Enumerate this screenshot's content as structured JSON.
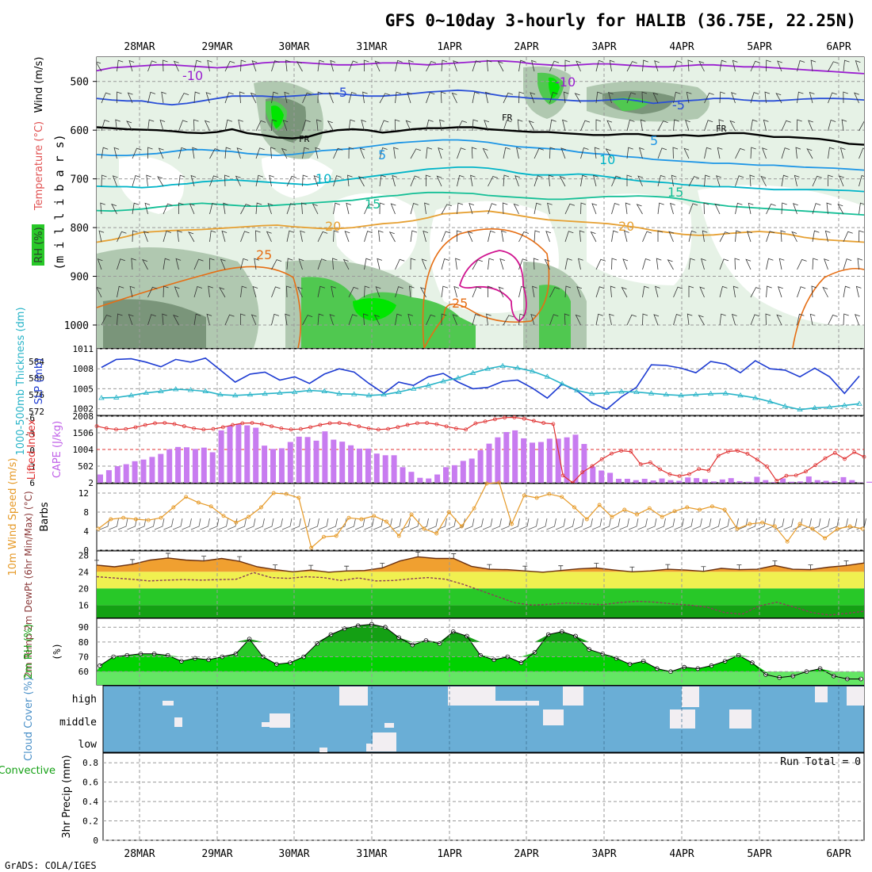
{
  "title": "GFS 0~10day 3-hourly for HALIB (36.75E, 22.25N)",
  "footer": "GrADS: COLA/IGES",
  "colors": {
    "purple": "#9a1ed0",
    "blue": "#2a4fd8",
    "black": "#000000",
    "skyblue": "#1e96e6",
    "cyan": "#00b4c8",
    "teal": "#14bf96",
    "gold": "#e6a032",
    "orange": "#e66e14",
    "magenta": "#d01690",
    "rh_light": "#e6f2e6",
    "rh_mid": "#b0c8b0",
    "rh_dark": "#7a957a",
    "rh_green": "#50c850",
    "rh_bright": "#00e600",
    "cape": "#c87cf0",
    "li": "#e03232",
    "slp": "#1e3cd2",
    "thick": "#28b4c8",
    "wind10": "#e69a28",
    "temp": "#f0a030",
    "dew": "#8c3c5a",
    "yellow": "#f0f050",
    "green1": "#64e664",
    "green2": "#28c828",
    "green3": "#14a014",
    "cloud_bg": "#6aaed6",
    "cloud_hi": "#f2eef2"
  },
  "chart_data": [
    {
      "id": "upper_air",
      "type": "heatmap",
      "ylabel": "(m i l l i b a r s)",
      "side_labels": [
        "RH (%)",
        "Temperature (°C)",
        "Wind (m/s)"
      ],
      "y_ticks": [
        500,
        600,
        700,
        800,
        900,
        1000
      ],
      "ylim": [
        450,
        1000
      ],
      "isotherm_labels": [
        "-10",
        "-5",
        "FR",
        "5",
        "10",
        "15",
        "20",
        "25"
      ],
      "contours": [
        {
          "label": "-10",
          "color": "purple",
          "values": [
            478,
            472,
            470,
            468,
            466,
            466,
            468,
            470,
            472,
            470,
            466,
            462,
            460,
            460,
            462,
            464,
            466,
            466,
            464,
            462,
            462,
            464,
            466,
            464,
            462,
            460,
            458,
            458,
            460,
            464,
            466,
            468,
            466,
            464,
            464,
            466,
            468,
            470,
            470,
            468,
            466,
            466,
            468,
            470,
            470,
            472,
            474,
            476,
            478,
            480,
            482,
            484
          ]
        },
        {
          "label": "-5",
          "color": "blue",
          "values": [
            535,
            538,
            540,
            540,
            545,
            548,
            545,
            540,
            535,
            530,
            530,
            530,
            532,
            530,
            528,
            525,
            525,
            528,
            530,
            530,
            528,
            525,
            522,
            520,
            518,
            520,
            525,
            530,
            532,
            535,
            536,
            538,
            540,
            540,
            538,
            536,
            540,
            545,
            542,
            540,
            538,
            535,
            535,
            538,
            540,
            540,
            538,
            536,
            535,
            535,
            536,
            538
          ]
        },
        {
          "label": "FR",
          "color": "black",
          "values": [
            594,
            596,
            598,
            599,
            600,
            602,
            605,
            606,
            604,
            598,
            606,
            610,
            615,
            617,
            614,
            605,
            600,
            598,
            600,
            605,
            602,
            598,
            596,
            596,
            594,
            594,
            598,
            600,
            602,
            604,
            604,
            606,
            608,
            610,
            610,
            608,
            608,
            612,
            612,
            610,
            612,
            610,
            606,
            606,
            610,
            614,
            614,
            616,
            618,
            622,
            628,
            630
          ]
        },
        {
          "label": "5",
          "color": "skyblue",
          "values": [
            650,
            652,
            652,
            650,
            648,
            644,
            640,
            640,
            642,
            644,
            648,
            650,
            652,
            650,
            646,
            642,
            640,
            638,
            634,
            630,
            626,
            624,
            622,
            620,
            620,
            622,
            625,
            630,
            634,
            636,
            638,
            640,
            645,
            648,
            650,
            654,
            656,
            660,
            662,
            664,
            666,
            668,
            668,
            670,
            672,
            672,
            674,
            676,
            677,
            678,
            680,
            682
          ]
        },
        {
          "label": "10",
          "color": "cyan",
          "values": [
            715,
            716,
            716,
            718,
            716,
            712,
            710,
            706,
            704,
            702,
            704,
            706,
            708,
            710,
            712,
            708,
            704,
            700,
            696,
            692,
            688,
            684,
            680,
            678,
            676,
            676,
            678,
            682,
            688,
            692,
            692,
            692,
            690,
            692,
            696,
            700,
            704,
            706,
            708,
            712,
            714,
            716,
            716,
            718,
            720,
            722,
            722,
            722,
            722,
            723,
            724,
            726
          ]
        },
        {
          "label": "15",
          "color": "teal",
          "values": [
            765,
            766,
            764,
            762,
            758,
            755,
            752,
            750,
            752,
            754,
            756,
            756,
            754,
            752,
            750,
            748,
            746,
            744,
            740,
            736,
            734,
            730,
            728,
            728,
            729,
            730,
            734,
            736,
            738,
            740,
            742,
            742,
            740,
            738,
            736,
            736,
            735,
            736,
            738,
            742,
            748,
            752,
            756,
            758,
            760,
            762,
            764,
            766,
            768,
            770,
            772,
            774
          ]
        },
        {
          "label": "20",
          "color": "gold",
          "values": [
            830,
            825,
            818,
            810,
            808,
            806,
            805,
            804,
            802,
            800,
            798,
            796,
            795,
            798,
            800,
            802,
            802,
            800,
            796,
            792,
            790,
            786,
            780,
            772,
            770,
            768,
            766,
            770,
            775,
            780,
            784,
            786,
            788,
            790,
            792,
            796,
            800,
            806,
            810,
            814,
            816,
            815,
            812,
            810,
            808,
            810,
            814,
            820,
            824,
            826,
            828,
            830
          ]
        }
      ]
    },
    {
      "id": "slp_thickness",
      "type": "line",
      "left_label": "1000-500mb Thickness (dm)",
      "right_label": "SLP (mb)",
      "left_ticks": [
        572,
        576,
        580,
        584
      ],
      "right_ticks": [
        1002,
        1005,
        1008,
        1011
      ],
      "series": [
        {
          "name": "SLP (mb)",
          "color": "slp",
          "ylim": [
            1001,
            1011
          ],
          "values": [
            1008.2,
            1009.4,
            1009.5,
            1009.0,
            1008.3,
            1009.4,
            1009.0,
            1009.6,
            1007.8,
            1006.0,
            1007.2,
            1007.5,
            1006.3,
            1006.8,
            1005.8,
            1007.2,
            1008.0,
            1007.5,
            1005.8,
            1004.3,
            1006.0,
            1005.5,
            1006.8,
            1007.3,
            1006.0,
            1005.0,
            1005.2,
            1006.1,
            1006.3,
            1005.1,
            1003.6,
            1005.7,
            1004.7,
            1002.9,
            1001.9,
            1003.8,
            1005.2,
            1008.6,
            1008.5,
            1008.1,
            1007.4,
            1009.1,
            1008.7,
            1007.4,
            1009.2,
            1008.0,
            1007.8,
            1006.8,
            1008.1,
            1006.8,
            1004.3,
            1006.9
          ]
        },
        {
          "name": "1000-500mb Thickness (dm)",
          "color": "thick",
          "ylim": [
            571,
            587
          ],
          "values": [
            575.2,
            575.3,
            575.8,
            576.4,
            576.8,
            577.3,
            577.1,
            576.8,
            576.0,
            575.8,
            576.0,
            576.2,
            576.4,
            576.6,
            577.0,
            576.8,
            576.2,
            576.1,
            575.8,
            576.0,
            576.6,
            577.4,
            578.2,
            579.2,
            580.0,
            581.2,
            582.2,
            582.9,
            582.4,
            581.6,
            580.3,
            578.6,
            577.0,
            576.2,
            576.4,
            576.7,
            576.6,
            576.3,
            576.0,
            575.8,
            576.0,
            576.2,
            576.3,
            575.8,
            575.2,
            574.3,
            573.2,
            572.4,
            572.8,
            573.0,
            573.4,
            573.8
          ]
        }
      ]
    },
    {
      "id": "cape_li",
      "type": "bar",
      "left_label": "Lifted Index",
      "right_label": "CAPE (J/kg)",
      "left_ticks": [
        "-6",
        "-3",
        "0",
        "3",
        "6"
      ],
      "right_ticks": [
        2,
        502,
        1004,
        1506,
        2008
      ],
      "cape_ylim": [
        0,
        2008
      ],
      "li_ylim": [
        6,
        -6
      ],
      "cape": [
        250,
        380,
        500,
        560,
        650,
        700,
        780,
        870,
        1010,
        1080,
        1070,
        1020,
        1060,
        920,
        1580,
        1720,
        1780,
        1730,
        1660,
        1120,
        1020,
        1040,
        1230,
        1390,
        1380,
        1270,
        1550,
        1300,
        1240,
        1130,
        1030,
        1030,
        880,
        830,
        830,
        470,
        330,
        150,
        130,
        250,
        470,
        530,
        660,
        730,
        980,
        1180,
        1370,
        1530,
        1580,
        1340,
        1210,
        1230,
        1330,
        1330,
        1370,
        1450,
        1170,
        490,
        370,
        300,
        120,
        120,
        80,
        120,
        70,
        130,
        80,
        60,
        160,
        140,
        110,
        40,
        100,
        140,
        50,
        30,
        180,
        80,
        20,
        130,
        30,
        40,
        190,
        80,
        60,
        50,
        170,
        80,
        10,
        30,
        70
      ]
    },
    {
      "id": "wind10m",
      "type": "line",
      "left_label": "10m Wind Speed (m/s)",
      "right_label": "Barbs",
      "y_ticks": [
        0,
        4,
        8,
        12
      ],
      "ylim": [
        0,
        14
      ],
      "series": [
        {
          "name": "10m Wind Speed",
          "color": "wind10",
          "values": [
            4.5,
            6.5,
            6.8,
            6.5,
            6.3,
            6.8,
            9.0,
            11.2,
            10.0,
            9.2,
            7.2,
            5.8,
            7.0,
            9.0,
            12.0,
            11.8,
            11.0,
            0.5,
            2.8,
            3.0,
            6.8,
            6.5,
            7.2,
            6.0,
            3.0,
            7.5,
            4.5,
            3.5,
            8.0,
            5.0,
            8.8,
            14.0,
            14.2,
            5.5,
            11.5,
            11.0,
            11.8,
            11.2,
            9.0,
            6.5,
            9.5,
            7.0,
            8.5,
            7.5,
            8.8,
            7.0,
            8.2,
            9.0,
            8.5,
            9.2,
            8.5,
            4.5,
            5.5,
            5.8,
            5.0,
            1.8,
            5.5,
            4.5,
            2.5,
            4.5,
            5.0,
            4.5
          ]
        }
      ]
    },
    {
      "id": "temp2m",
      "type": "area",
      "left_label": "2m Temp 2m DewPt (6hr Min/Max) (°C)",
      "y_ticks": [
        16,
        20,
        24,
        28
      ],
      "ylim": [
        13,
        29
      ],
      "series": [
        {
          "name": "2m Temp",
          "color": "temp",
          "values": [
            25.6,
            25.2,
            25.8,
            26.8,
            27.3,
            26.8,
            26.6,
            27.2,
            26.5,
            25.2,
            24.5,
            24.0,
            24.4,
            23.9,
            24.2,
            24.3,
            24.9,
            26.6,
            27.6,
            27.2,
            27.2,
            25.3,
            24.6,
            24.5,
            24.2,
            23.9,
            24.3,
            24.7,
            24.9,
            24.4,
            24.0,
            24.2,
            24.6,
            24.4,
            24.1,
            24.8,
            24.5,
            24.6,
            25.5,
            24.6,
            24.5,
            25.1,
            25.5,
            26.1
          ]
        },
        {
          "name": "2m DewPt",
          "color": "dew",
          "values": [
            22.8,
            22.5,
            22.2,
            21.8,
            22.0,
            22.1,
            22.0,
            22.1,
            22.2,
            23.8,
            22.6,
            22.4,
            22.8,
            22.6,
            21.9,
            22.5,
            21.8,
            21.9,
            22.3,
            22.6,
            22.2,
            21.0,
            19.5,
            18.0,
            16.5,
            16.0,
            16.2,
            16.5,
            16.3,
            16.1,
            16.6,
            16.9,
            16.7,
            16.3,
            16.0,
            15.5,
            14.2,
            13.8,
            15.8,
            16.7,
            15.5,
            14.2,
            13.6,
            14.0,
            14.5
          ]
        }
      ]
    },
    {
      "id": "rh2m",
      "type": "area",
      "left_label": "2m RH (%)",
      "y_ticks": [
        60,
        70,
        80,
        90
      ],
      "ylim": [
        51,
        96
      ],
      "series": [
        {
          "name": "2m RH",
          "color": "rh_green",
          "values": [
            64,
            70,
            71,
            72,
            72,
            71,
            67,
            69,
            68,
            70,
            72,
            82,
            70,
            65,
            66,
            70,
            79,
            85,
            89,
            91,
            92,
            90,
            83,
            78,
            81,
            79,
            87,
            84,
            71,
            68,
            70,
            66,
            73,
            85,
            87,
            84,
            75,
            72,
            69,
            65,
            67,
            62,
            60,
            63,
            62,
            64,
            67,
            71,
            66,
            58,
            56,
            57,
            60,
            62,
            57,
            55,
            55
          ]
        }
      ]
    },
    {
      "id": "cloud",
      "type": "heatmap",
      "left_label": "Cloud Cover (%)",
      "y_categories": [
        "high",
        "middle",
        "low"
      ]
    },
    {
      "id": "precip",
      "type": "bar",
      "left_label": "Total / Rain / Convective",
      "ylabel": "3hr Precip (mm)",
      "y_ticks": [
        "0",
        "0.2",
        "0.4",
        "0.6",
        "0.8"
      ],
      "ylim": [
        0,
        0.9
      ],
      "values": [],
      "run_total_label": "Run Total = 0"
    }
  ],
  "x_axis": {
    "dates": [
      "28MAR",
      "29MAR",
      "30MAR",
      "31MAR",
      "1APR",
      "2APR",
      "3APR",
      "4APR",
      "5APR",
      "6APR"
    ]
  }
}
